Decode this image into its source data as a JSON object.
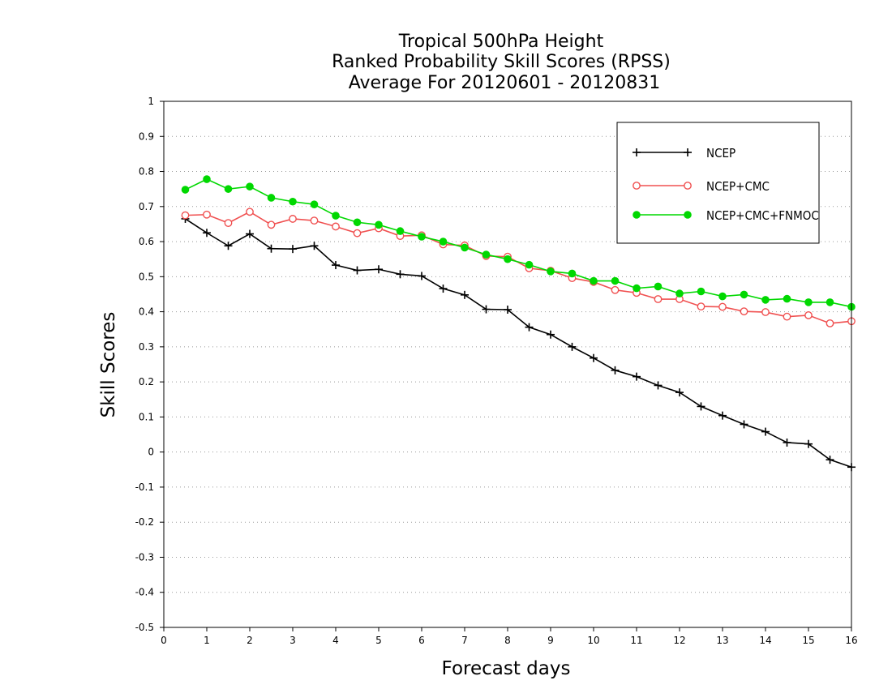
{
  "chart_data": {
    "type": "line",
    "title_lines": [
      "Tropical 500hPa Height",
      "Ranked Probability Skill Scores (RPSS)",
      "Average For 20120601 - 20120831"
    ],
    "xlabel": "Forecast days",
    "ylabel": "Skill Scores",
    "xlim": [
      0,
      16
    ],
    "ylim": [
      -0.5,
      1
    ],
    "x_ticks": [
      0,
      1,
      2,
      3,
      4,
      5,
      6,
      7,
      8,
      9,
      10,
      11,
      12,
      13,
      14,
      15,
      16
    ],
    "x_tick_labels": [
      "0",
      "1",
      "2",
      "3",
      "4",
      "5",
      "6",
      "7",
      "8",
      "9",
      "10",
      "11",
      "12",
      "13",
      "14",
      "15",
      "16"
    ],
    "y_ticks": [
      -0.5,
      -0.4,
      -0.3,
      -0.2,
      -0.1,
      0,
      0.1,
      0.2,
      0.3,
      0.4,
      0.5,
      0.6,
      0.7,
      0.8,
      0.9,
      1
    ],
    "y_tick_labels": [
      "-0.5",
      "-0.4",
      "-0.3",
      "-0.2",
      "-0.1",
      "0",
      "0.1",
      "0.2",
      "0.3",
      "0.4",
      "0.5",
      "0.6",
      "0.7",
      "0.8",
      "0.9",
      "1"
    ],
    "grid": "horizontal dotted",
    "legend_position": "top-right",
    "x": [
      0.5,
      1,
      1.5,
      2,
      2.5,
      3,
      3.5,
      4,
      4.5,
      5,
      5.5,
      6,
      6.5,
      7,
      7.5,
      8,
      8.5,
      9,
      9.5,
      10,
      10.5,
      11,
      11.5,
      12,
      12.5,
      13,
      13.5,
      14,
      14.5,
      15,
      15.5,
      16
    ],
    "series": [
      {
        "name": "NCEP",
        "color": "#000000",
        "marker": "plus",
        "values": [
          0.665,
          0.625,
          0.588,
          0.622,
          0.58,
          0.579,
          0.588,
          0.533,
          0.518,
          0.521,
          0.507,
          0.502,
          0.466,
          0.448,
          0.407,
          0.406,
          0.356,
          0.335,
          0.3,
          0.268,
          0.233,
          0.215,
          0.19,
          0.17,
          0.13,
          0.104,
          0.079,
          0.058,
          0.027,
          0.023,
          -0.022,
          -0.043
        ]
      },
      {
        "name": "NCEP+CMC",
        "color": "#f05050",
        "marker": "open-circle",
        "values": [
          0.675,
          0.677,
          0.653,
          0.685,
          0.648,
          0.665,
          0.66,
          0.643,
          0.624,
          0.638,
          0.616,
          0.618,
          0.592,
          0.589,
          0.559,
          0.557,
          0.524,
          0.517,
          0.496,
          0.485,
          0.462,
          0.454,
          0.436,
          0.436,
          0.415,
          0.414,
          0.401,
          0.399,
          0.386,
          0.39,
          0.367,
          0.373
        ]
      },
      {
        "name": "NCEP+CMC+FNMOC",
        "color": "#00d800",
        "marker": "filled-circle",
        "values": [
          0.748,
          0.778,
          0.75,
          0.757,
          0.725,
          0.714,
          0.706,
          0.674,
          0.655,
          0.648,
          0.63,
          0.614,
          0.6,
          0.583,
          0.563,
          0.55,
          0.534,
          0.515,
          0.509,
          0.488,
          0.488,
          0.467,
          0.472,
          0.452,
          0.458,
          0.444,
          0.449,
          0.434,
          0.437,
          0.427,
          0.427,
          0.414
        ]
      }
    ]
  }
}
